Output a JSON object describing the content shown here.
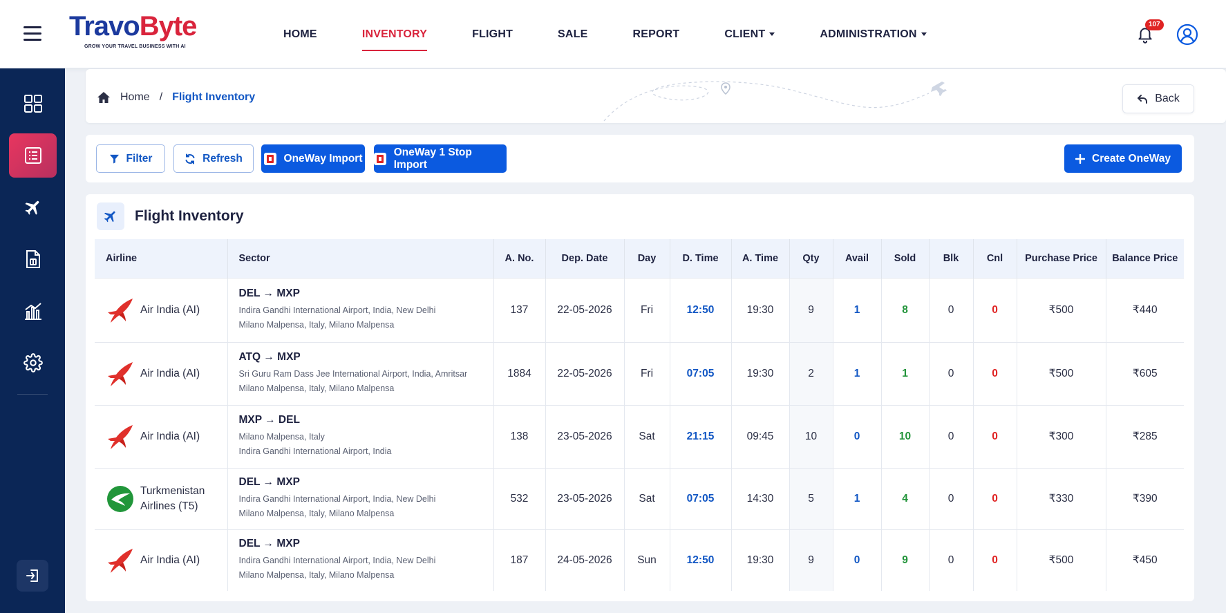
{
  "brand": {
    "name_part1": "Travo",
    "name_part2": "Byte",
    "tagline": "GROW YOUR TRAVEL BUSINESS WITH AI"
  },
  "nav": {
    "items": [
      {
        "label": "HOME",
        "active": false,
        "dropdown": false
      },
      {
        "label": "INVENTORY",
        "active": true,
        "dropdown": false
      },
      {
        "label": "FLIGHT",
        "active": false,
        "dropdown": false
      },
      {
        "label": "SALE",
        "active": false,
        "dropdown": false
      },
      {
        "label": "REPORT",
        "active": false,
        "dropdown": false
      },
      {
        "label": "CLIENT",
        "active": false,
        "dropdown": true
      },
      {
        "label": "ADMINISTRATION",
        "active": false,
        "dropdown": true
      }
    ],
    "notification_count": "107"
  },
  "sidebar": {
    "items": [
      {
        "icon": "dashboard-grid-icon",
        "active": false
      },
      {
        "icon": "list-icon",
        "active": true
      },
      {
        "icon": "airplane-icon",
        "active": false
      },
      {
        "icon": "document-icon",
        "active": false
      },
      {
        "icon": "chart-icon",
        "active": false
      },
      {
        "icon": "gear-icon",
        "active": false
      }
    ],
    "logout_icon": "logout-icon"
  },
  "breadcrumb": {
    "home": "Home",
    "separator": "/",
    "current": "Flight Inventory",
    "back_label": "Back"
  },
  "toolbar": {
    "filter_label": "Filter",
    "refresh_label": "Refresh",
    "oneway_import_label": "OneWay Import",
    "oneway_stop_import_label": "OneWay 1 Stop Import",
    "create_label": "Create OneWay"
  },
  "inventory": {
    "title": "Flight Inventory",
    "columns": [
      "Airline",
      "Sector",
      "A. No.",
      "Dep. Date",
      "Day",
      "D. Time",
      "A. Time",
      "Qty",
      "Avail",
      "Sold",
      "Blk",
      "Cnl",
      "Purchase Price",
      "Balance Price"
    ],
    "rows": [
      {
        "airline_line1": "Air India (AI)",
        "airline_line2": "",
        "logo": "air-india",
        "route": "DEL → MXP",
        "from": "Indira Gandhi International Airport, India, New Delhi",
        "to": "Milano Malpensa, Italy, Milano Malpensa",
        "a_no": "137",
        "dep_date": "22-05-2026",
        "day": "Fri",
        "d_time": "12:50",
        "a_time": "19:30",
        "qty": "9",
        "avail": "1",
        "sold": "8",
        "blk": "0",
        "cnl": "0",
        "purchase": "₹500",
        "balance": "₹440"
      },
      {
        "airline_line1": "Air India (AI)",
        "airline_line2": "",
        "logo": "air-india",
        "route": "ATQ → MXP",
        "from": "Sri Guru Ram Dass Jee International Airport, India, Amritsar",
        "to": "Milano Malpensa, Italy, Milano Malpensa",
        "a_no": "1884",
        "dep_date": "22-05-2026",
        "day": "Fri",
        "d_time": "07:05",
        "a_time": "19:30",
        "qty": "2",
        "avail": "1",
        "sold": "1",
        "blk": "0",
        "cnl": "0",
        "purchase": "₹500",
        "balance": "₹605"
      },
      {
        "airline_line1": "Air India (AI)",
        "airline_line2": "",
        "logo": "air-india",
        "route": "MXP → DEL",
        "from": "Milano Malpensa, Italy",
        "to": "Indira Gandhi International Airport, India",
        "a_no": "138",
        "dep_date": "23-05-2026",
        "day": "Sat",
        "d_time": "21:15",
        "a_time": "09:45",
        "qty": "10",
        "avail": "0",
        "sold": "10",
        "blk": "0",
        "cnl": "0",
        "purchase": "₹300",
        "balance": "₹285"
      },
      {
        "airline_line1": "Turkmenistan",
        "airline_line2": "Airlines (T5)",
        "logo": "turkmenistan",
        "route": "DEL → MXP",
        "from": "Indira Gandhi International Airport, India, New Delhi",
        "to": "Milano Malpensa, Italy, Milano Malpensa",
        "a_no": "532",
        "dep_date": "23-05-2026",
        "day": "Sat",
        "d_time": "07:05",
        "a_time": "14:30",
        "qty": "5",
        "avail": "1",
        "sold": "4",
        "blk": "0",
        "cnl": "0",
        "purchase": "₹330",
        "balance": "₹390"
      },
      {
        "airline_line1": "Air India (AI)",
        "airline_line2": "",
        "logo": "air-india",
        "route": "DEL → MXP",
        "from": "Indira Gandhi International Airport, India, New Delhi",
        "to": "Milano Malpensa, Italy, Milano Malpensa",
        "a_no": "187",
        "dep_date": "24-05-2026",
        "day": "Sun",
        "d_time": "12:50",
        "a_time": "19:30",
        "qty": "9",
        "avail": "0",
        "sold": "9",
        "blk": "0",
        "cnl": "0",
        "purchase": "₹500",
        "balance": "₹450"
      }
    ]
  },
  "colors": {
    "brand_blue": "#1c3a9e",
    "brand_red": "#d9243c",
    "primary": "#0b5ae0",
    "sidebar": "#0b2656"
  }
}
